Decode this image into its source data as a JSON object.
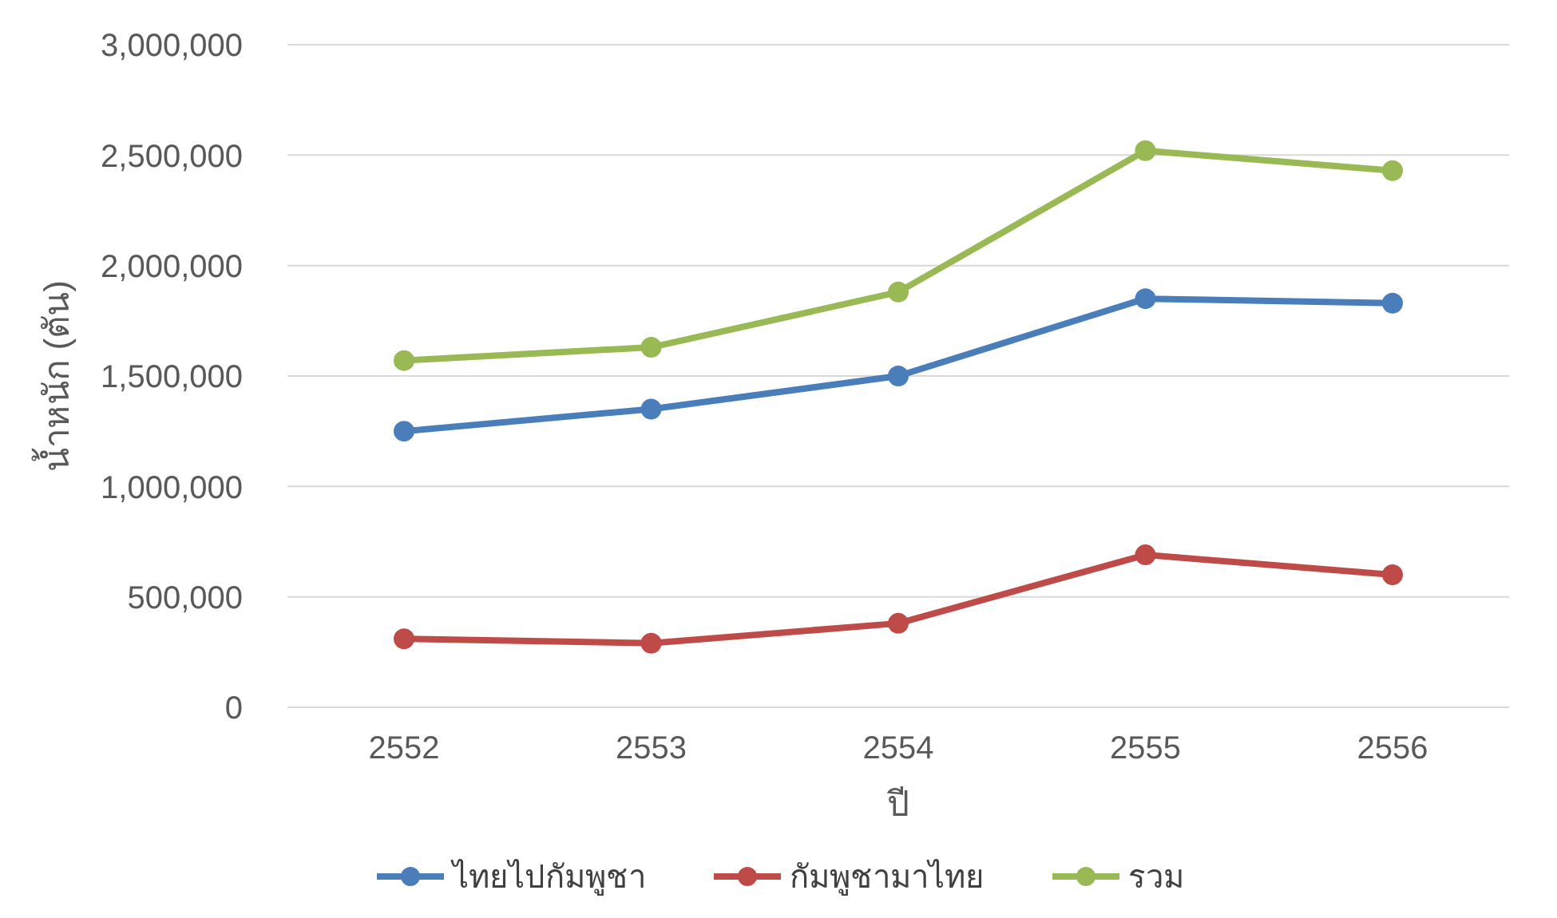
{
  "chart_data": {
    "type": "line",
    "xlabel": "ปี",
    "ylabel": "น้ำหนัก (ตัน)",
    "categories": [
      "2552",
      "2553",
      "2554",
      "2555",
      "2556"
    ],
    "series": [
      {
        "name": "ไทยไปกัมพูชา",
        "color": "#4a7ebb",
        "values": [
          1250000,
          1350000,
          1500000,
          1850000,
          1830000
        ]
      },
      {
        "name": "กัมพูชามาไทย",
        "color": "#be4b48",
        "values": [
          310000,
          290000,
          380000,
          690000,
          600000
        ]
      },
      {
        "name": "รวม",
        "color": "#98b954",
        "values": [
          1570000,
          1630000,
          1880000,
          2520000,
          2430000
        ]
      }
    ],
    "ylim": [
      0,
      3000000
    ],
    "yticks": [
      0,
      {
        "value": 500000,
        "label": "500,000"
      },
      {
        "value": 1000000,
        "label": "1,000,000"
      },
      {
        "value": 1500000,
        "label": "1,500,000"
      },
      {
        "value": 2000000,
        "label": "2,000,000"
      },
      {
        "value": 2500000,
        "label": "2,500,000"
      },
      {
        "value": 3000000,
        "label": "3,000,000"
      }
    ],
    "grid": "y",
    "legend": "bottom",
    "marker": "circle",
    "line_style": "solid"
  }
}
